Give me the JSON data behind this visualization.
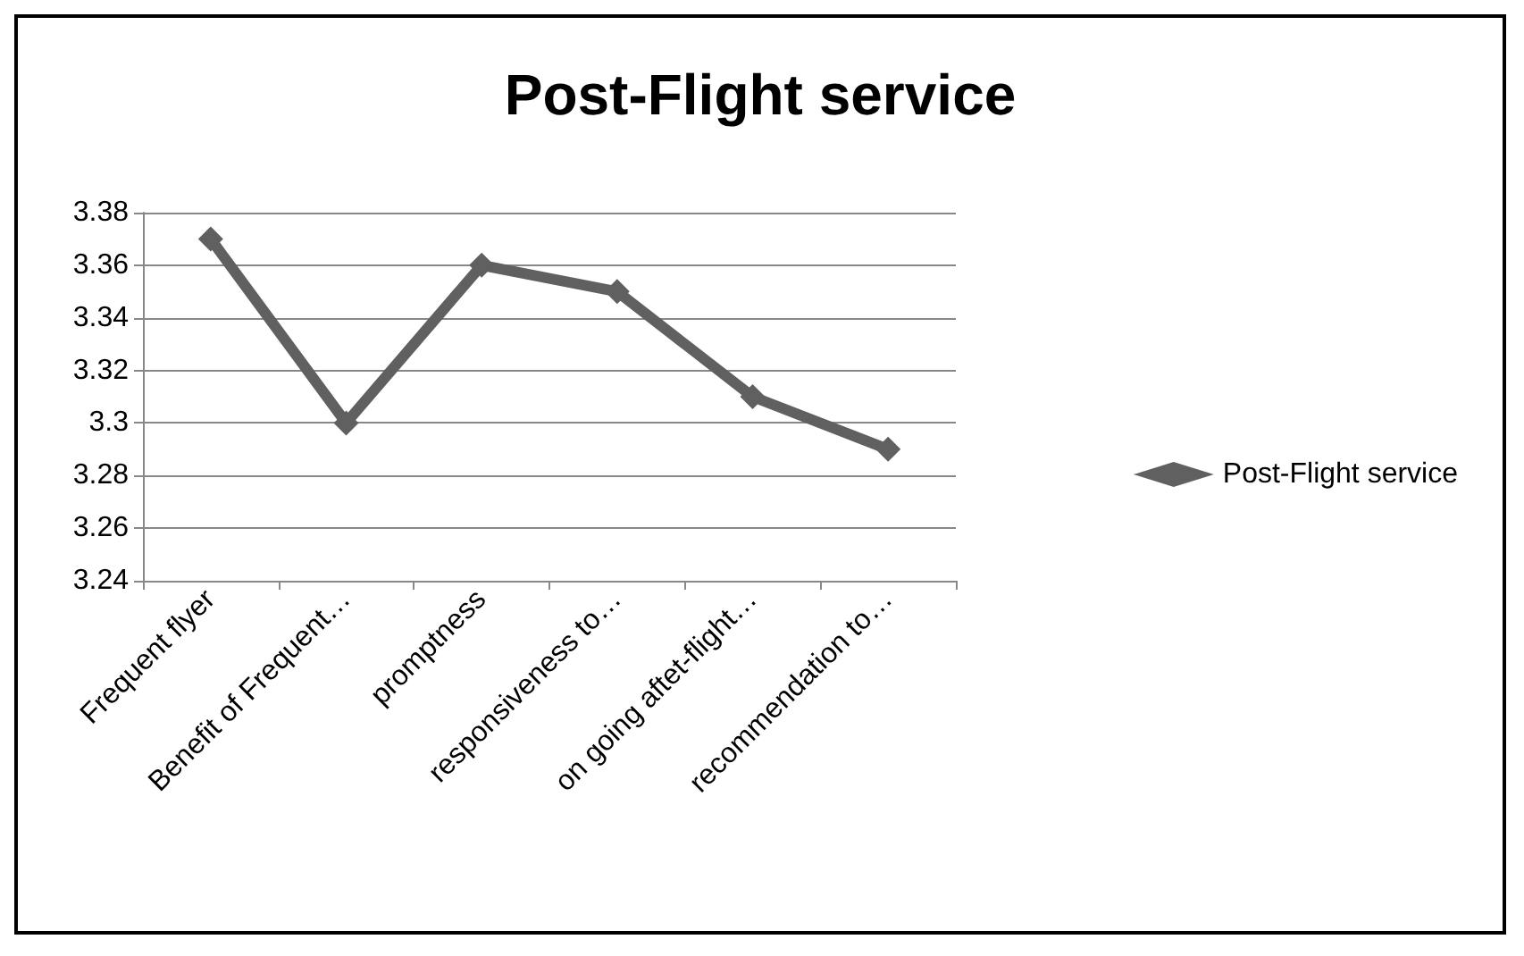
{
  "chart_data": {
    "type": "line",
    "title": "Post-Flight service",
    "categories": [
      "Frequent flyer",
      "Benefit of Frequent…",
      "promptness",
      "responsiveness to…",
      "on going aftet-flight…",
      "recommendation to…"
    ],
    "series": [
      {
        "name": "Post-Flight service",
        "color": "#606060",
        "values": [
          3.37,
          3.3,
          3.36,
          3.35,
          3.31,
          3.29
        ]
      }
    ],
    "ylim": [
      3.24,
      3.38
    ],
    "yticks": [
      3.24,
      3.26,
      3.28,
      3.3,
      3.32,
      3.34,
      3.36,
      3.38
    ],
    "grid": "y",
    "legend": "right",
    "marker": "diamond",
    "line_style": "solid"
  }
}
